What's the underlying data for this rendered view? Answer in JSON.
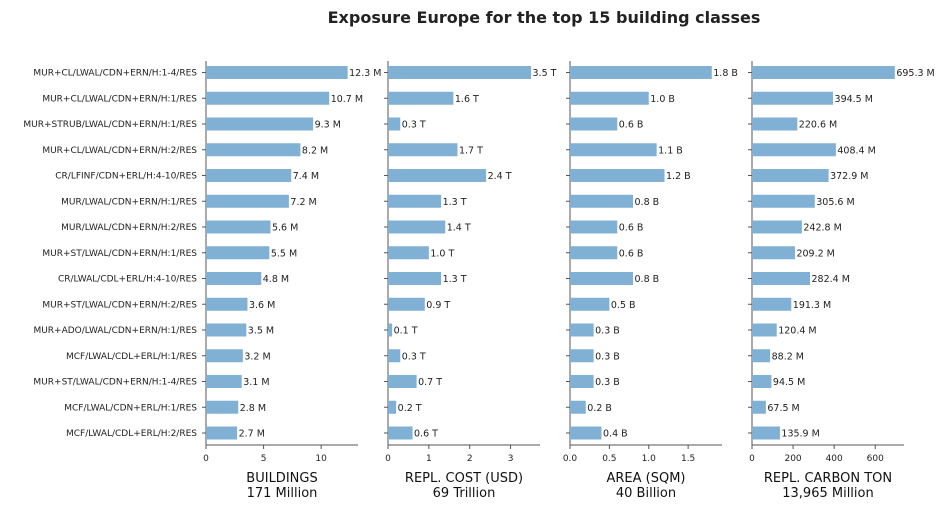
{
  "title": "Exposure Europe for the top 15 building classes",
  "bar_color": "#80b0d4",
  "categories": [
    "MUR+CL/LWAL/CDN+ERN/H:1-4/RES",
    "MUR+CL/LWAL/CDN+ERN/H:1/RES",
    "MUR+STRUB/LWAL/CDN+ERN/H:1/RES",
    "MUR+CL/LWAL/CDN+ERN/H:2/RES",
    "CR/LFINF/CDN+ERL/H:4-10/RES",
    "MUR/LWAL/CDN+ERN/H:1/RES",
    "MUR/LWAL/CDN+ERN/H:2/RES",
    "MUR+ST/LWAL/CDN+ERN/H:1/RES",
    "CR/LWAL/CDL+ERL/H:4-10/RES",
    "MUR+ST/LWAL/CDN+ERN/H:2/RES",
    "MUR+ADO/LWAL/CDN+ERN/H:1/RES",
    "MCF/LWAL/CDL+ERL/H:1/RES",
    "MUR+ST/LWAL/CDN+ERN/H:1-4/RES",
    "MCF/LWAL/CDN+ERL/H:1/RES",
    "MCF/LWAL/CDL+ERL/H:2/RES"
  ],
  "chart_data": [
    {
      "type": "bar",
      "orientation": "horizontal",
      "xlabel": "BUILDINGS",
      "xlabel_total": "171 Million",
      "xlim": [
        0,
        13.2
      ],
      "xticks": [
        0,
        5,
        10
      ],
      "xtick_labels": [
        "0",
        "5",
        "10"
      ],
      "values": [
        12.3,
        10.7,
        9.3,
        8.2,
        7.4,
        7.2,
        5.6,
        5.5,
        4.8,
        3.6,
        3.5,
        3.2,
        3.1,
        2.8,
        2.7
      ],
      "value_labels": [
        "12.3 M",
        "10.7 M",
        "9.3 M",
        "8.2 M",
        "7.4 M",
        "7.2 M",
        "5.6 M",
        "5.5 M",
        "4.8 M",
        "3.6 M",
        "3.5 M",
        "3.2 M",
        "3.1 M",
        "2.8 M",
        "2.7 M"
      ]
    },
    {
      "type": "bar",
      "orientation": "horizontal",
      "xlabel": "REPL. COST (USD)",
      "xlabel_total": "69 Trillion",
      "xlim": [
        0,
        3.72
      ],
      "xticks": [
        0,
        1,
        2,
        3
      ],
      "xtick_labels": [
        "0",
        "1",
        "2",
        "3"
      ],
      "values": [
        3.5,
        1.6,
        0.3,
        1.7,
        2.4,
        1.3,
        1.4,
        1.0,
        1.3,
        0.9,
        0.1,
        0.3,
        0.7,
        0.2,
        0.6
      ],
      "value_labels": [
        "3.5 T",
        "1.6 T",
        "0.3 T",
        "1.7 T",
        "2.4 T",
        "1.3 T",
        "1.4 T",
        "1.0 T",
        "1.3 T",
        "0.9 T",
        "0.1 T",
        "0.3 T",
        "0.7 T",
        "0.2 T",
        "0.6 T"
      ]
    },
    {
      "type": "bar",
      "orientation": "horizontal",
      "xlabel": "AREA (SQM)",
      "xlabel_total": "40 Billion",
      "xlim": [
        0,
        1.93
      ],
      "xticks": [
        0,
        0.5,
        1.0,
        1.5
      ],
      "xtick_labels": [
        "0.0",
        "0.5",
        "1.0",
        "1.5"
      ],
      "values": [
        1.8,
        1.0,
        0.6,
        1.1,
        1.2,
        0.8,
        0.6,
        0.6,
        0.8,
        0.5,
        0.3,
        0.3,
        0.3,
        0.2,
        0.4
      ],
      "value_labels": [
        "1.8 B",
        "1.0 B",
        "0.6 B",
        "1.1 B",
        "1.2 B",
        "0.8 B",
        "0.6 B",
        "0.6 B",
        "0.8 B",
        "0.5 B",
        "0.3 B",
        "0.3 B",
        "0.3 B",
        "0.2 B",
        "0.4 B"
      ]
    },
    {
      "type": "bar",
      "orientation": "horizontal",
      "xlabel": "REPL. CARBON TON",
      "xlabel_total": "13,965 Million",
      "xlim": [
        0,
        740
      ],
      "xticks": [
        0,
        200,
        400,
        600
      ],
      "xtick_labels": [
        "0",
        "200",
        "400",
        "600"
      ],
      "values": [
        695.3,
        394.5,
        220.6,
        408.4,
        372.9,
        305.6,
        242.8,
        209.2,
        282.4,
        191.3,
        120.4,
        88.2,
        94.5,
        67.5,
        135.9
      ],
      "value_labels": [
        "695.3 M",
        "394.5 M",
        "220.6 M",
        "408.4 M",
        "372.9 M",
        "305.6 M",
        "242.8 M",
        "209.2 M",
        "282.4 M",
        "191.3 M",
        "120.4 M",
        "88.2 M",
        "94.5 M",
        "67.5 M",
        "135.9 M"
      ]
    }
  ]
}
